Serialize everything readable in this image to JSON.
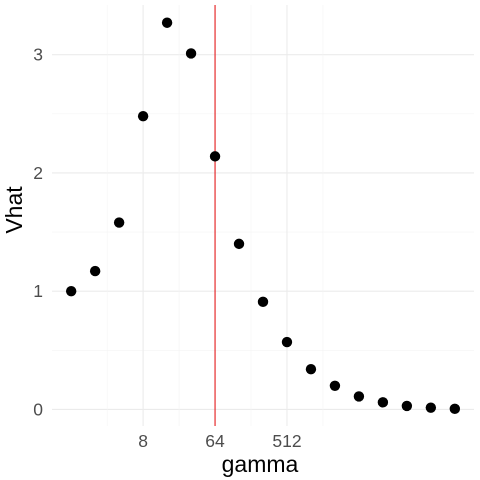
{
  "chart_data": {
    "type": "scatter",
    "xlabel": "gamma",
    "ylabel": "Vhat",
    "x_scale": "log2",
    "x": [
      1,
      2,
      4,
      8,
      16,
      32,
      64,
      128,
      256,
      512,
      1024,
      2048,
      4096,
      8192,
      16384,
      32768,
      65536
    ],
    "x_display_scale": "log2 spaced, 1 unit per doubling",
    "xticks": [
      {
        "value": 8,
        "label": "8"
      },
      {
        "value": 64,
        "label": "64"
      },
      {
        "value": 512,
        "label": "512"
      }
    ],
    "xlim_log2": [
      -0.8,
      16.8
    ],
    "x_points_log2": [
      0,
      1,
      2,
      3,
      4,
      5,
      6,
      7,
      8,
      9,
      10,
      11,
      12,
      13,
      14,
      15,
      16
    ],
    "y": [
      1.0,
      1.17,
      1.58,
      2.48,
      3.27,
      3.01,
      2.14,
      1.4,
      0.91,
      0.57,
      0.34,
      0.2,
      0.11,
      0.06,
      0.03,
      0.015,
      0.005
    ],
    "yticks": [
      {
        "value": 0,
        "label": "0"
      },
      {
        "value": 1,
        "label": "1"
      },
      {
        "value": 2,
        "label": "2"
      },
      {
        "value": 3,
        "label": "3"
      }
    ],
    "ylim": [
      -0.14,
      3.42
    ],
    "vline_log2": 6,
    "grid": true,
    "colors": {
      "points": "#000000",
      "vline": "#e41a1c",
      "grid": "#ebebeb"
    }
  }
}
